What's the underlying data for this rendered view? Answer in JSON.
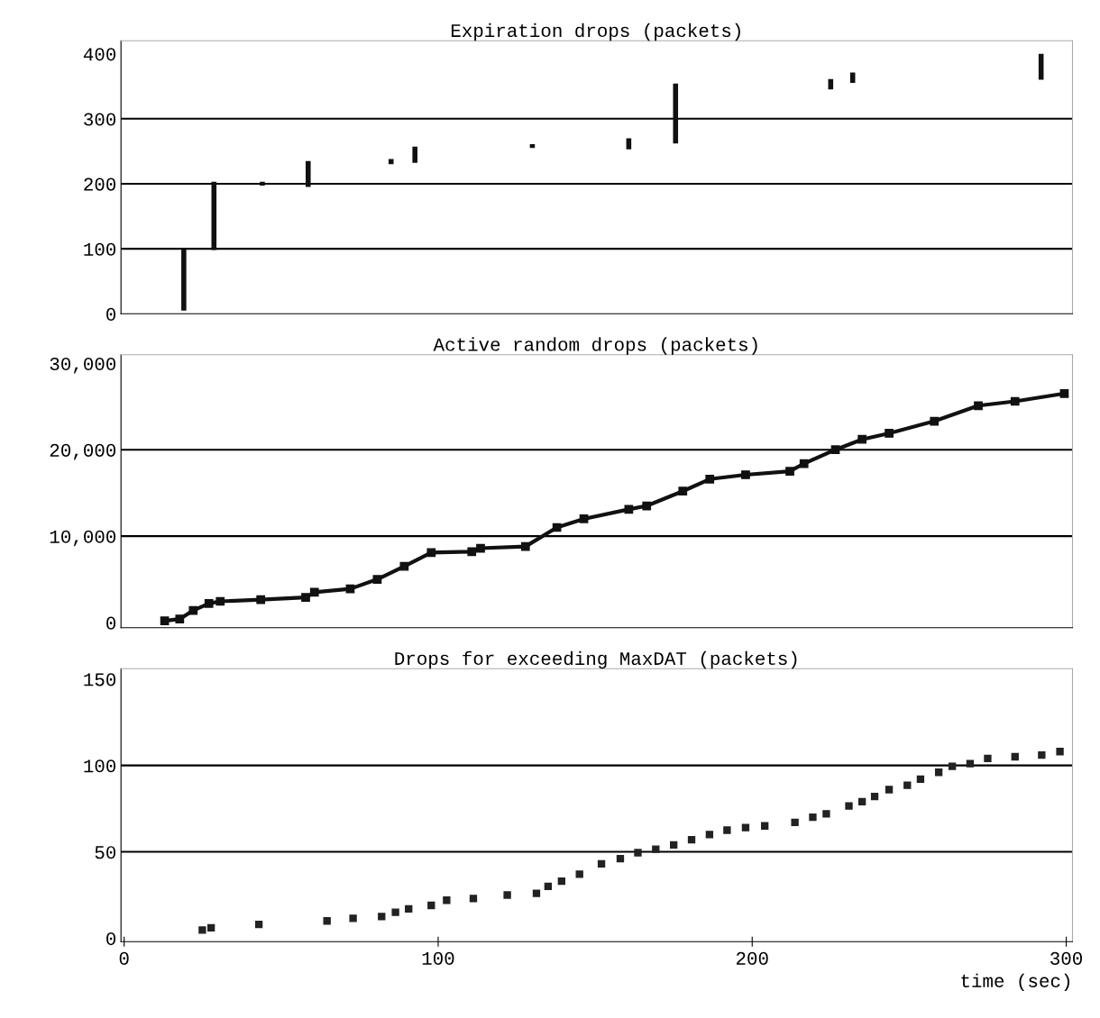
{
  "chart_data": [
    {
      "type": "bar",
      "title": "Expiration drops (packets)",
      "x": [
        19,
        28.6,
        44,
        58.6,
        85,
        92.6,
        130,
        160.7,
        175.6,
        225,
        232,
        292
      ],
      "base": [
        5,
        98,
        197,
        195,
        230,
        232,
        255,
        253,
        262,
        345,
        355,
        360
      ],
      "values": [
        96,
        105,
        6,
        40,
        8,
        25,
        6,
        17,
        92,
        16,
        16,
        40
      ],
      "color": "#111111",
      "xlim": [
        -1,
        302
      ],
      "ylim": [
        0,
        420
      ],
      "yticks": [
        0,
        100,
        200,
        300,
        400
      ],
      "tick_labels": "y",
      "ref_lines": [
        {
          "axis": "y",
          "value": 100
        },
        {
          "axis": "y",
          "value": 200
        },
        {
          "axis": "y",
          "value": 300
        }
      ]
    },
    {
      "type": "line",
      "title": "Active random drops (packets)",
      "marker": "square",
      "color": "#111111",
      "x": [
        12.9,
        17.7,
        22,
        27,
        30.6,
        43.5,
        57.8,
        60.6,
        72,
        80.6,
        89.2,
        97.8,
        110.7,
        113.5,
        127.8,
        137.8,
        146.4,
        160.7,
        166.4,
        177.9,
        186.5,
        197.9,
        212,
        216.5,
        226.5,
        235,
        243.6,
        258,
        272,
        283.7,
        299.4
      ],
      "values": [
        200,
        400,
        1400,
        2200,
        2450,
        2650,
        2900,
        3500,
        3900,
        5000,
        6500,
        8100,
        8200,
        8600,
        8800,
        11000,
        12000,
        13100,
        13500,
        15200,
        16600,
        17100,
        17500,
        18400,
        20000,
        21200,
        21900,
        23300,
        25100,
        25600,
        26500
      ],
      "xlim": [
        -1,
        302
      ],
      "ylim": [
        -600,
        31000
      ],
      "yticks": [
        {
          "value": 0,
          "label": "0"
        },
        {
          "value": 10000,
          "label": "10,000"
        },
        {
          "value": 20000,
          "label": "20,000"
        },
        {
          "value": 30000,
          "label": "30,000"
        }
      ],
      "tick_labels": "y",
      "ref_lines": [
        {
          "axis": "y",
          "value": 10000
        },
        {
          "axis": "y",
          "value": 20000
        }
      ]
    },
    {
      "type": "scatter",
      "title": "Drops for exceeding MaxDAT (packets)",
      "marker": "square",
      "color": "#222222",
      "xlabel": "time (sec)",
      "x": [
        24.9,
        27.7,
        42.9,
        64.6,
        72.9,
        82,
        86.4,
        90.6,
        97.8,
        102.7,
        111.2,
        122,
        131.3,
        135,
        139.3,
        145,
        152,
        158,
        163.6,
        169.3,
        175,
        180.7,
        186.4,
        192,
        197.9,
        204,
        213.6,
        219.3,
        223.6,
        230.8,
        235,
        239,
        243.6,
        249.4,
        253.6,
        259.4,
        263.7,
        269.4,
        275,
        283.7,
        292.2,
        298
      ],
      "values": [
        4.7,
        6,
        8,
        10,
        11.5,
        12.5,
        15,
        17,
        19,
        22,
        23,
        25,
        26,
        30,
        33,
        37,
        43,
        46,
        49.5,
        51.5,
        54,
        57,
        60,
        62.5,
        64,
        65,
        67,
        70,
        72,
        76.5,
        79,
        82,
        86,
        88.5,
        92,
        96,
        99.5,
        101,
        104,
        105,
        106,
        108
      ],
      "xlim": [
        -1,
        302
      ],
      "xticks": [
        0,
        100,
        200,
        300
      ],
      "ylim": [
        -2,
        156
      ],
      "yticks": [
        0,
        50,
        100,
        150
      ],
      "ref_lines": [
        {
          "axis": "y",
          "value": 50
        },
        {
          "axis": "y",
          "value": 100
        }
      ]
    }
  ]
}
